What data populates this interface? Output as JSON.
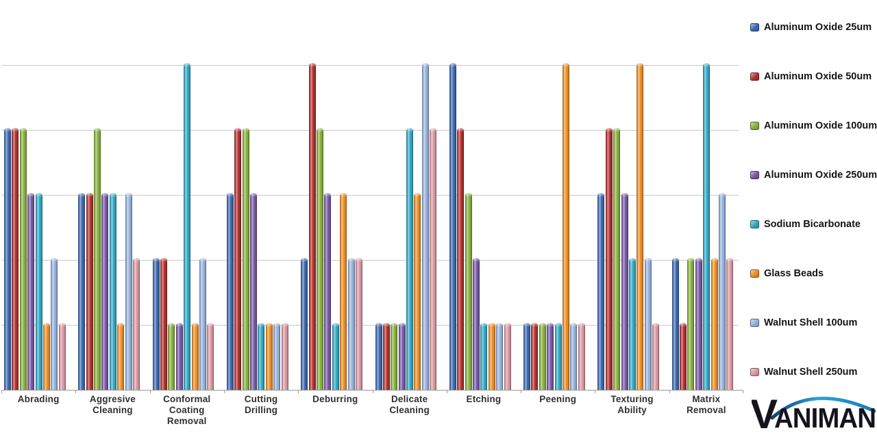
{
  "chart_data": {
    "type": "bar",
    "title": "",
    "xlabel": "",
    "ylabel": "",
    "ylim": [
      0,
      5
    ],
    "y_gridline_step": 1,
    "y_axis_labels_visible": false,
    "grid": true,
    "legend_position": "right",
    "categories": [
      "Abrading",
      "Aggresive\nCleaning",
      "Conformal\nCoating\nRemoval",
      "Cutting\nDrilling",
      "Deburring",
      "Delicate\nCleaning",
      "Etching",
      "Peening",
      "Texturing\nAbility",
      "Matrix\nRemoval"
    ],
    "series": [
      {
        "name": "Aluminum Oxide 25um",
        "color": "#3a67ae",
        "values": [
          4,
          3,
          2,
          3,
          2,
          1,
          5,
          1,
          3,
          2
        ]
      },
      {
        "name": "Aluminum Oxide 50um",
        "color": "#b02f2f",
        "values": [
          4,
          3,
          2,
          4,
          5,
          1,
          4,
          1,
          4,
          1
        ]
      },
      {
        "name": "Aluminum Oxide 100um",
        "color": "#86ae3c",
        "values": [
          4,
          4,
          1,
          4,
          4,
          1,
          3,
          1,
          4,
          2
        ]
      },
      {
        "name": "Aluminum Oxide 250um",
        "color": "#7557a4",
        "values": [
          3,
          3,
          1,
          3,
          3,
          1,
          2,
          1,
          3,
          2
        ]
      },
      {
        "name": "Sodium Bicarbonate",
        "color": "#2fa6c2",
        "values": [
          3,
          3,
          5,
          1,
          1,
          4,
          1,
          1,
          2,
          5
        ]
      },
      {
        "name": "Glass Beads",
        "color": "#ea8c25",
        "values": [
          1,
          1,
          1,
          1,
          3,
          3,
          1,
          5,
          5,
          2
        ]
      },
      {
        "name": "Walnut Shell 100um",
        "color": "#94b0da",
        "values": [
          2,
          3,
          2,
          1,
          2,
          5,
          1,
          1,
          2,
          3
        ]
      },
      {
        "name": "Walnut Shell 250um",
        "color": "#d796a0",
        "values": [
          1,
          2,
          1,
          1,
          2,
          4,
          1,
          1,
          1,
          2
        ]
      }
    ],
    "colors": {
      "gridline": "#c9c9c9",
      "axis": "#9b9b9b",
      "category_label": "#2f2f2f",
      "legend_text": "#141414"
    }
  },
  "logo": {
    "initial": "V",
    "rest": "ANIMAN",
    "text_color": "#14141c",
    "arc_colors": [
      "#15406f",
      "#2ba3db",
      "#1e78b4"
    ]
  }
}
